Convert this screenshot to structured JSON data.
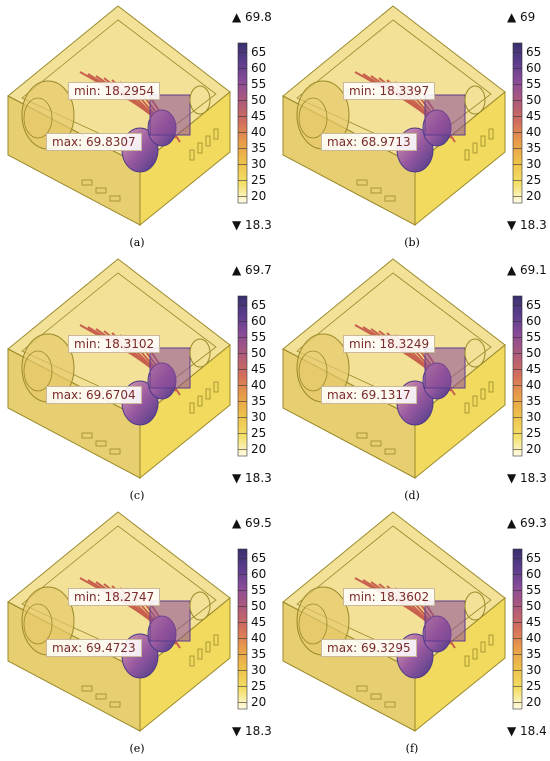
{
  "panels": [
    {
      "caption": "(a)",
      "min_label": "min: 18.2954",
      "max_label": "max: 69.8307",
      "colorbar_max": "▲ 69.8",
      "colorbar_min": "▼ 18.3"
    },
    {
      "caption": "(b)",
      "min_label": "min: 18.3397",
      "max_label": "max: 68.9713",
      "colorbar_max": "▲ 69",
      "colorbar_min": "▼ 18.3"
    },
    {
      "caption": "(c)",
      "min_label": "min: 18.3102",
      "max_label": "max: 69.6704",
      "colorbar_max": "▲ 69.7",
      "colorbar_min": "▼ 18.3"
    },
    {
      "caption": "(d)",
      "min_label": "min: 18.3249",
      "max_label": "max: 69.1317",
      "colorbar_max": "▲ 69.1",
      "colorbar_min": "▼ 18.3"
    },
    {
      "caption": "(e)",
      "min_label": "min: 18.2747",
      "max_label": "max: 69.4723",
      "colorbar_max": "▲ 69.5",
      "colorbar_min": "▼ 18.3"
    },
    {
      "caption": "(f)",
      "min_label": "min: 18.3602",
      "max_label": "max: 69.3295",
      "colorbar_max": "▲ 69.3",
      "colorbar_min": "▼ 18.4"
    }
  ],
  "colorbar_ticks": [
    "65",
    "60",
    "55",
    "50",
    "45",
    "40",
    "35",
    "30",
    "25",
    "20"
  ],
  "colorbar_tick_values": [
    65,
    60,
    55,
    50,
    45,
    40,
    35,
    30,
    25,
    20
  ],
  "colormap": [
    "#fffbe6",
    "#f3e06a",
    "#eec24a",
    "#e89c4a",
    "#d4705c",
    "#b05a7a",
    "#8a4b98",
    "#5b3c8e",
    "#3a2f6e"
  ],
  "colors": {
    "box_fill": "#e6cf6a",
    "box_edge": "#9a8a2a",
    "label_text": "#7a2b2b"
  }
}
